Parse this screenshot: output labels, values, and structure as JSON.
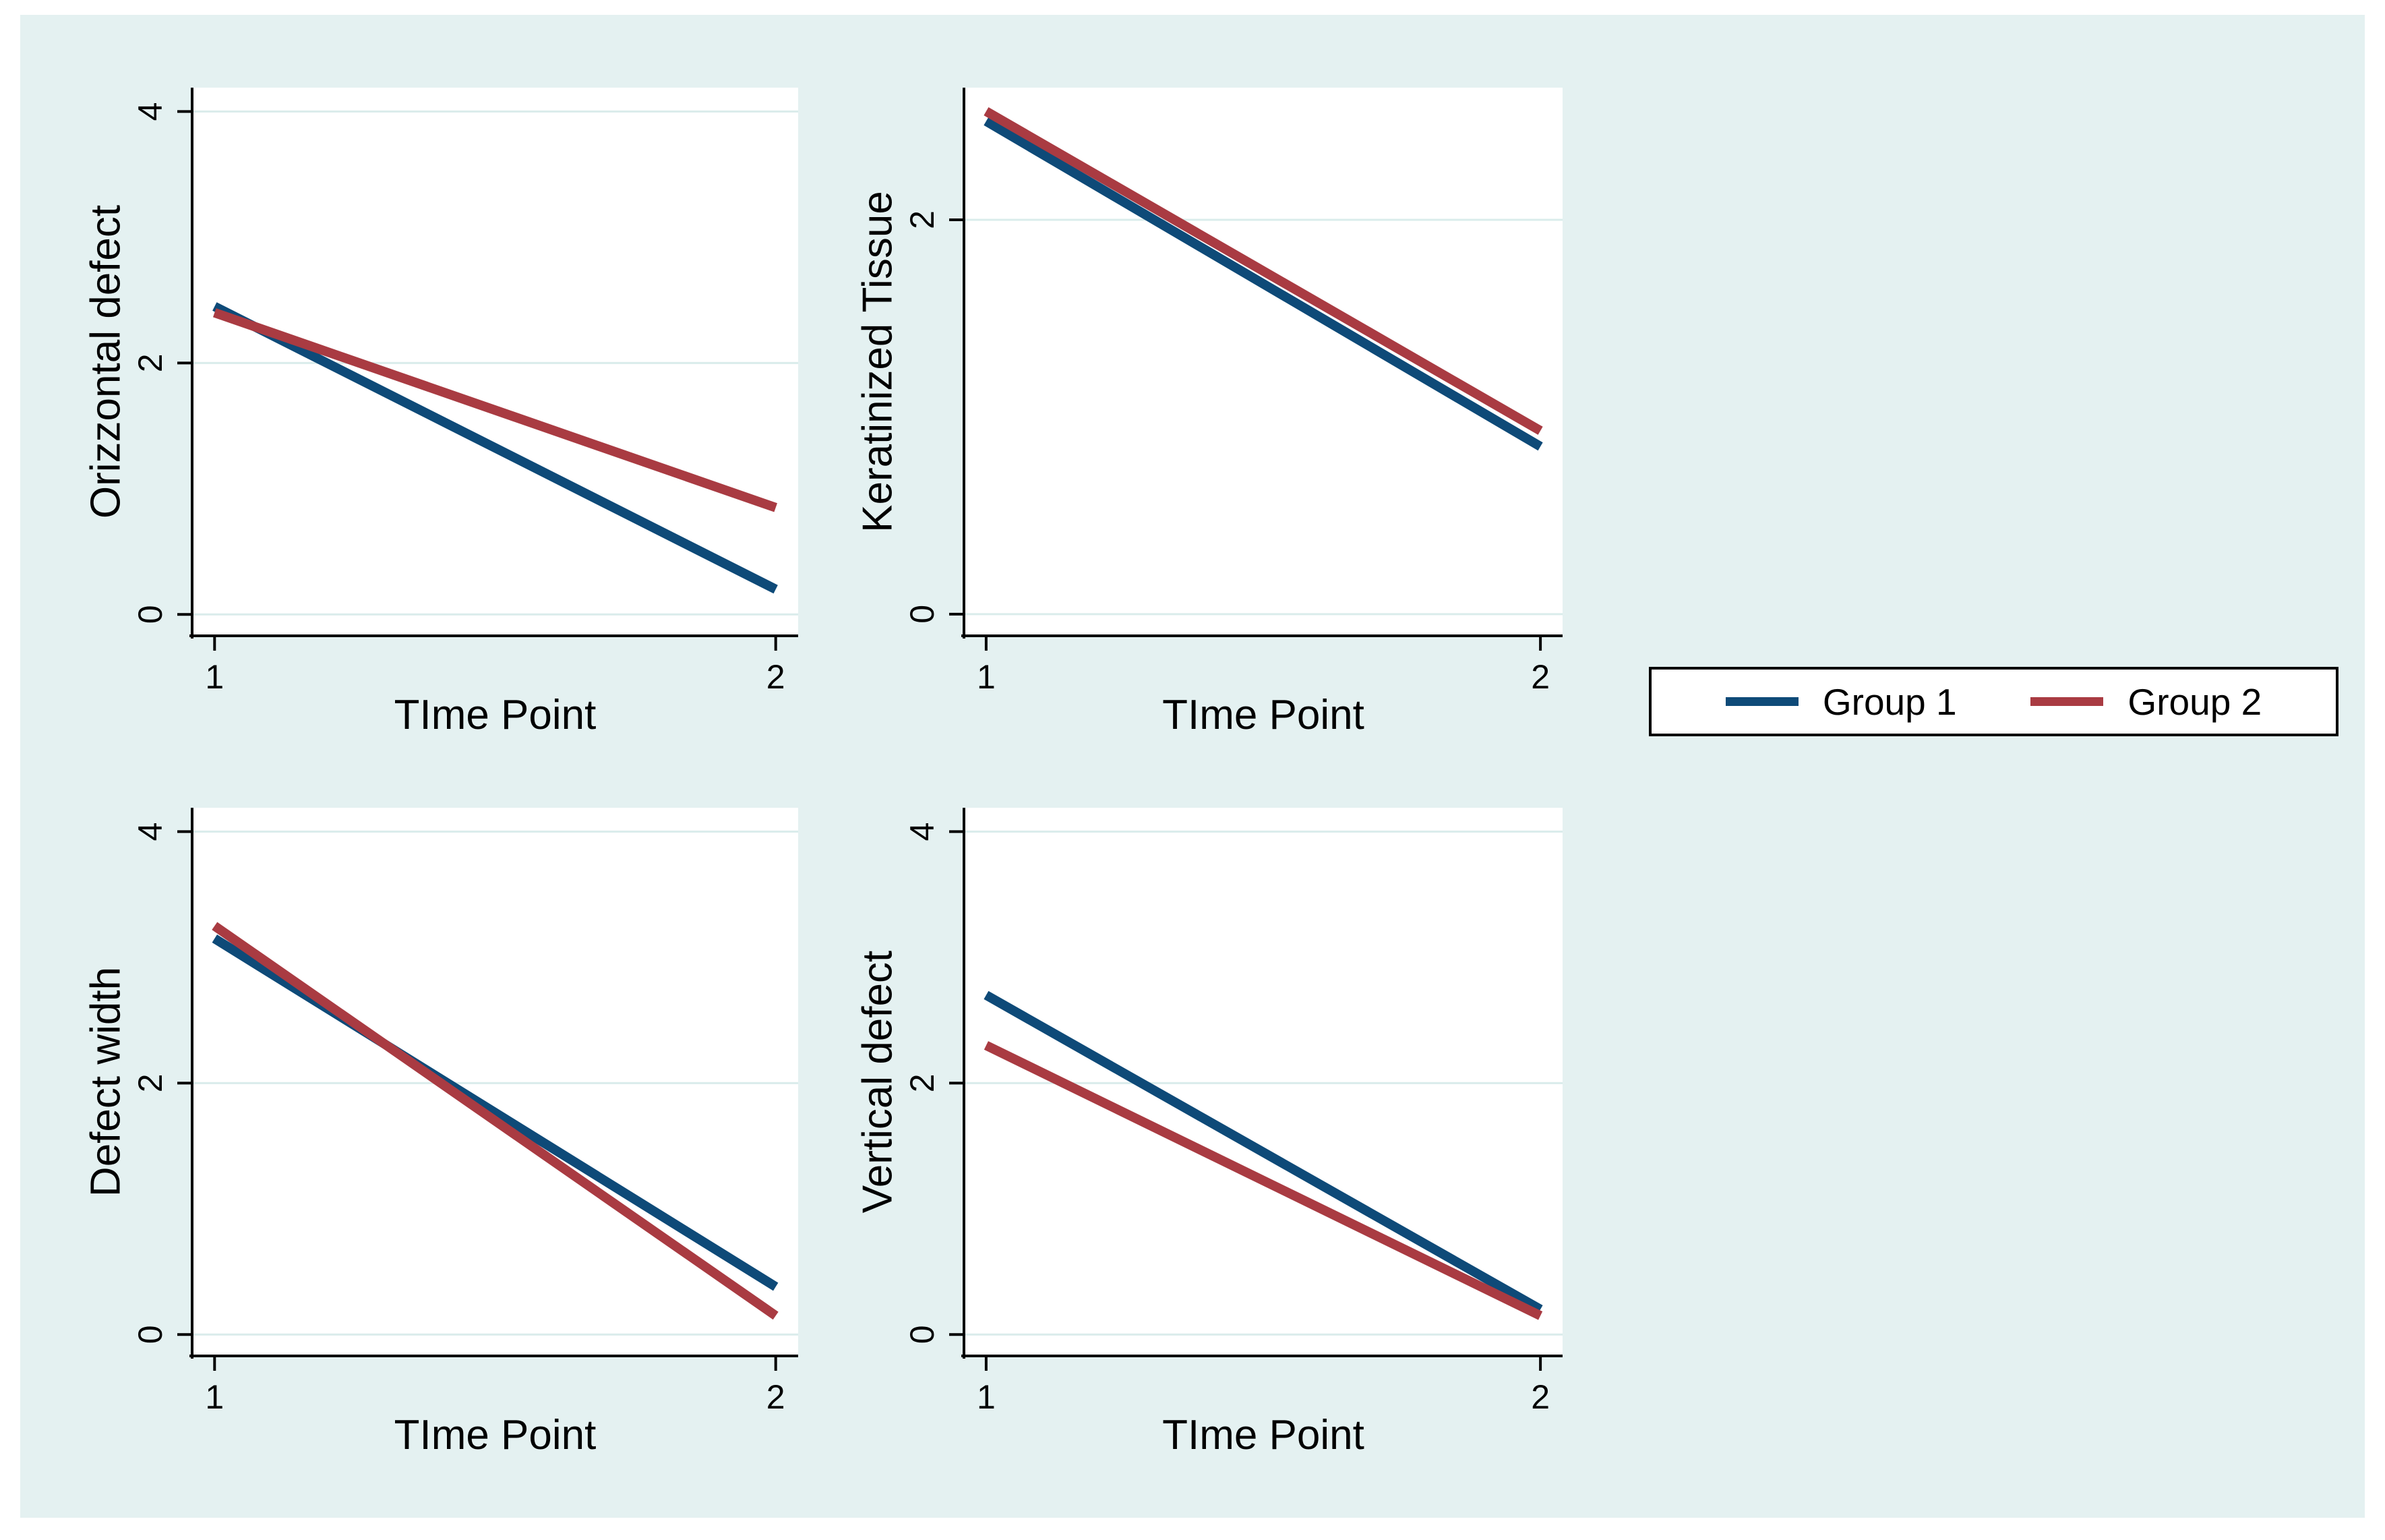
{
  "figure": {
    "kind": "two-by-two panel line figure",
    "background_color": "#E4F1F1",
    "plot_background_color": "#FFFFFF",
    "gridline_color": "#DAECEB",
    "axis_color": "#000000"
  },
  "legend": {
    "position": "right-middle",
    "border_color": "#000000",
    "items": [
      {
        "label": "Group 1",
        "color": "#0E4A78"
      },
      {
        "label": "Group 2",
        "color": "#A93B42"
      }
    ]
  },
  "chart_data": [
    {
      "type": "line",
      "panel": "top-left",
      "title": "",
      "ylabel": "Orizzontal defect",
      "xlabel": "TIme Point",
      "x": [
        1,
        2
      ],
      "xticks": [
        1,
        2
      ],
      "yticks": [
        0,
        2,
        4
      ],
      "xlim": [
        0.96,
        2.04
      ],
      "ylim": [
        -0.17,
        4.19
      ],
      "grid": true,
      "legend_position": "outside-right",
      "series": [
        {
          "name": "Group 1",
          "color": "#0E4A78",
          "values": [
            2.45,
            0.2
          ]
        },
        {
          "name": "Group 2",
          "color": "#A93B42",
          "values": [
            2.4,
            0.85
          ]
        }
      ]
    },
    {
      "type": "line",
      "panel": "top-right",
      "title": "",
      "ylabel": "Keratinized Tissue",
      "xlabel": "TIme Point",
      "x": [
        1,
        2
      ],
      "xticks": [
        1,
        2
      ],
      "yticks": [
        0,
        2
      ],
      "xlim": [
        0.96,
        2.04
      ],
      "ylim": [
        -0.11,
        2.67
      ],
      "grid": true,
      "legend_position": "outside-right",
      "series": [
        {
          "name": "Group 1",
          "color": "#0E4A78",
          "values": [
            2.5,
            0.85
          ]
        },
        {
          "name": "Group 2",
          "color": "#A93B42",
          "values": [
            2.55,
            0.93
          ]
        }
      ]
    },
    {
      "type": "line",
      "panel": "bottom-left",
      "title": "",
      "ylabel": "Defect width",
      "xlabel": "TIme Point",
      "x": [
        1,
        2
      ],
      "xticks": [
        1,
        2
      ],
      "yticks": [
        0,
        2,
        4
      ],
      "xlim": [
        0.96,
        2.04
      ],
      "ylim": [
        -0.17,
        4.19
      ],
      "grid": true,
      "legend_position": "outside-right",
      "series": [
        {
          "name": "Group 1",
          "color": "#0E4A78",
          "values": [
            3.15,
            0.38
          ]
        },
        {
          "name": "Group 2",
          "color": "#A93B42",
          "values": [
            3.25,
            0.15
          ]
        }
      ]
    },
    {
      "type": "line",
      "panel": "bottom-right",
      "title": "",
      "ylabel": "Vertical defect",
      "xlabel": "TIme Point",
      "x": [
        1,
        2
      ],
      "xticks": [
        1,
        2
      ],
      "yticks": [
        0,
        2,
        4
      ],
      "xlim": [
        0.96,
        2.04
      ],
      "ylim": [
        -0.17,
        4.19
      ],
      "grid": true,
      "legend_position": "outside-right",
      "series": [
        {
          "name": "Group 1",
          "color": "#0E4A78",
          "values": [
            2.7,
            0.2
          ]
        },
        {
          "name": "Group 2",
          "color": "#A93B42",
          "values": [
            2.3,
            0.15
          ]
        }
      ]
    }
  ]
}
